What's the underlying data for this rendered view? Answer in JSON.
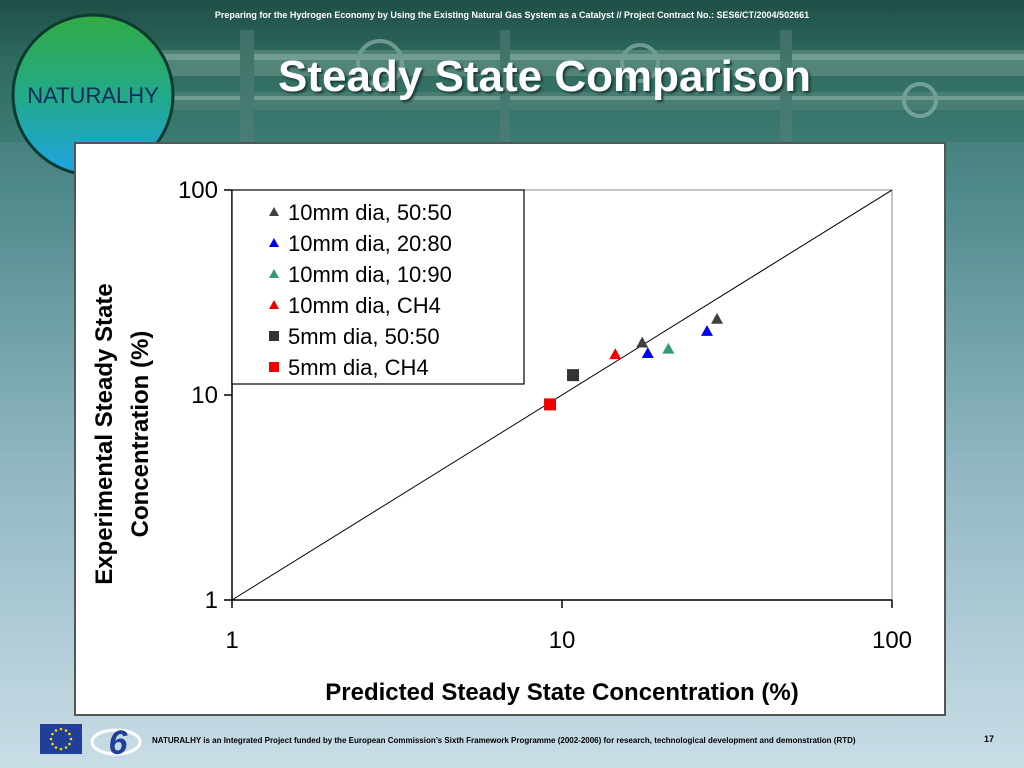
{
  "header": {
    "topline": "Preparing for the Hydrogen Economy by Using the Existing Natural Gas System as a Catalyst // Project Contract No.: SES6/CT/2004/502661",
    "logo_text": "NATURALHY",
    "title": "Steady State Comparison"
  },
  "footer": {
    "note": "NATURALHY is an Integrated Project funded by the European Commission’s Sixth Framework Programme (2002-2006) for research, technological development and demonstration (RTD)",
    "page": "17",
    "fp6_text": "6"
  },
  "chart_data": {
    "type": "scatter",
    "xlabel": "Predicted Steady State Concentration (%)",
    "ylabel_lines": [
      "Experimental Steady State",
      "Concentration (%)"
    ],
    "xscale": "log",
    "yscale": "log",
    "xlim": [
      1,
      100
    ],
    "ylim": [
      1,
      100
    ],
    "xticks": [
      "1",
      "10",
      "100"
    ],
    "yticks": [
      "1",
      "10",
      "100"
    ],
    "reference_line": "y = x",
    "legend_position": "top-left",
    "series": [
      {
        "name": "10mm dia, 50:50",
        "marker": "triangle",
        "color": "#404040",
        "points": [
          [
            17.5,
            18
          ],
          [
            29.5,
            23.5
          ]
        ]
      },
      {
        "name": "10mm dia, 20:80",
        "marker": "triangle",
        "color": "#0000ee",
        "points": [
          [
            18.2,
            16
          ],
          [
            27.5,
            20.5
          ]
        ]
      },
      {
        "name": "10mm dia, 10:90",
        "marker": "triangle",
        "color": "#33997a",
        "points": [
          [
            21,
            16.8
          ]
        ]
      },
      {
        "name": "10mm dia, CH4",
        "marker": "triangle",
        "color": "#ee0000",
        "points": [
          [
            14.5,
            15.8
          ]
        ]
      },
      {
        "name": "5mm dia, 50:50",
        "marker": "square",
        "color": "#333333",
        "points": [
          [
            10.8,
            12.5
          ]
        ]
      },
      {
        "name": "5mm dia, CH4",
        "marker": "square",
        "color": "#ee0000",
        "points": [
          [
            9.2,
            9
          ]
        ]
      }
    ]
  }
}
